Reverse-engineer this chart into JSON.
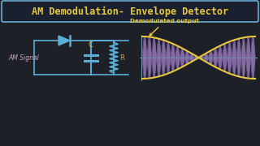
{
  "bg_color": "#1e2028",
  "title": "AM Demodulation- Envelope Detector",
  "title_color": "#e8c840",
  "title_border": "#6ab0d0",
  "title_bg": "#1a2030",
  "circuit_color": "#5ab0d8",
  "label_color": "#c8a8c8",
  "component_color": "#d4a840",
  "signal_fill_color": "#9878b8",
  "signal_line_color": "#7860a0",
  "envelope_color": "#e8c840",
  "axis_color": "#7090a8",
  "annotation_color": "#e8c840",
  "annotation_text": "Demodulated output",
  "am_signal_label": "AM Signal",
  "cap_label": "C",
  "res_label": "R",
  "arrow_color": "#e8c840"
}
